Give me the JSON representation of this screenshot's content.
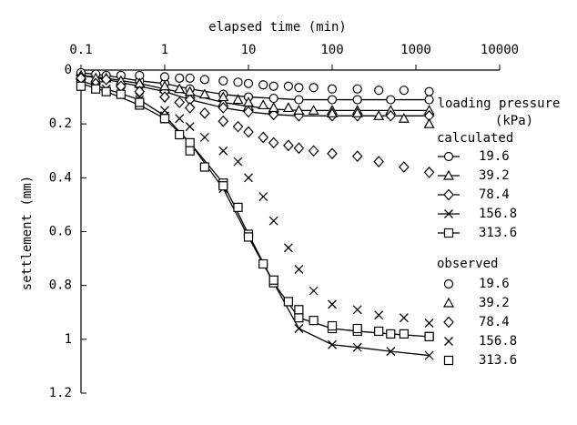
{
  "chart_data": {
    "type": "line",
    "x_label": "elapsed time (min)",
    "y_label": "settlement (mm)",
    "xscale": "log",
    "xlim": [
      0.1,
      10000
    ],
    "xticks": [
      0.1,
      1,
      10,
      100,
      1000,
      10000
    ],
    "ylim": [
      0,
      1.2
    ],
    "yticks": [
      0,
      0.2,
      0.4,
      0.6,
      0.8,
      1,
      1.2
    ],
    "y_inverted": true,
    "color": "#000000",
    "legend_title": "loading pressure",
    "legend_unit": "(kPa)",
    "calculated": {
      "label": "calculated",
      "line": true,
      "x": [
        0.1,
        0.2,
        0.5,
        1,
        2,
        5,
        10,
        20,
        40,
        100,
        200,
        500,
        1440
      ],
      "series": [
        {
          "name": "19.6",
          "marker": "circle",
          "values": [
            0.01,
            0.02,
            0.04,
            0.05,
            0.07,
            0.09,
            0.1,
            0.105,
            0.11,
            0.11,
            0.11,
            0.11,
            0.11
          ]
        },
        {
          "name": "39.2",
          "marker": "triangle",
          "values": [
            0.02,
            0.03,
            0.05,
            0.07,
            0.09,
            0.12,
            0.135,
            0.145,
            0.15,
            0.15,
            0.15,
            0.15,
            0.15
          ]
        },
        {
          "name": "78.4",
          "marker": "diamond",
          "values": [
            0.02,
            0.035,
            0.06,
            0.08,
            0.11,
            0.14,
            0.155,
            0.165,
            0.17,
            0.17,
            0.17,
            0.17,
            0.17
          ]
        },
        {
          "name": "156.8",
          "marker": "x",
          "values": [
            0.04,
            0.07,
            0.11,
            0.17,
            0.27,
            0.44,
            0.62,
            0.79,
            0.96,
            1.02,
            1.03,
            1.045,
            1.06
          ]
        },
        {
          "name": "313.6",
          "marker": "square",
          "values": [
            0.05,
            0.08,
            0.13,
            0.18,
            0.27,
            0.42,
            0.61,
            0.79,
            0.92,
            0.96,
            0.97,
            0.98,
            0.99
          ]
        }
      ]
    },
    "observed": {
      "label": "observed",
      "line": false,
      "x": [
        0.1,
        0.15,
        0.3,
        0.5,
        1,
        1.5,
        2,
        3,
        5,
        7.5,
        10,
        15,
        20,
        30,
        40,
        60,
        100,
        200,
        360,
        720,
        1440
      ],
      "series": [
        {
          "name": "19.6",
          "marker": "circle",
          "values": [
            0.01,
            0.015,
            0.02,
            0.02,
            0.025,
            0.03,
            0.03,
            0.035,
            0.04,
            0.045,
            0.05,
            0.055,
            0.06,
            0.06,
            0.065,
            0.065,
            0.07,
            0.07,
            0.075,
            0.075,
            0.08
          ]
        },
        {
          "name": "39.2",
          "marker": "triangle",
          "values": [
            0.02,
            0.03,
            0.04,
            0.05,
            0.06,
            0.07,
            0.08,
            0.09,
            0.1,
            0.11,
            0.12,
            0.13,
            0.14,
            0.14,
            0.15,
            0.15,
            0.16,
            0.16,
            0.17,
            0.18,
            0.2
          ]
        },
        {
          "name": "78.4",
          "marker": "diamond",
          "values": [
            0.03,
            0.05,
            0.06,
            0.08,
            0.1,
            0.12,
            0.14,
            0.16,
            0.19,
            0.21,
            0.23,
            0.25,
            0.27,
            0.28,
            0.29,
            0.3,
            0.31,
            0.32,
            0.34,
            0.36,
            0.38
          ]
        },
        {
          "name": "156.8",
          "marker": "x",
          "values": [
            0.05,
            0.06,
            0.08,
            0.1,
            0.15,
            0.18,
            0.21,
            0.25,
            0.3,
            0.34,
            0.4,
            0.47,
            0.56,
            0.66,
            0.74,
            0.82,
            0.87,
            0.89,
            0.91,
            0.92,
            0.94
          ]
        },
        {
          "name": "313.6",
          "marker": "square",
          "values": [
            0.06,
            0.07,
            0.09,
            0.12,
            0.18,
            0.24,
            0.3,
            0.36,
            0.43,
            0.51,
            0.62,
            0.72,
            0.78,
            0.86,
            0.89,
            0.93,
            0.95,
            0.96,
            0.97,
            0.98,
            0.99
          ]
        }
      ]
    }
  }
}
